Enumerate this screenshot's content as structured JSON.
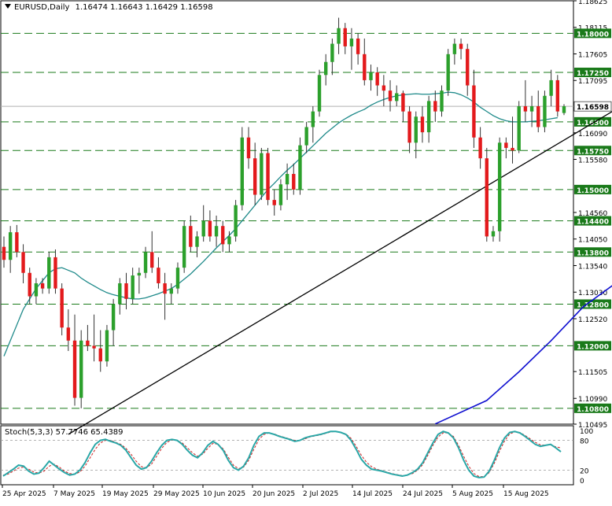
{
  "header": {
    "symbol_title": "EURUSD,Daily",
    "ohlc_text": "1.16474 1.16643 1.16429 1.16598"
  },
  "stoch_header": {
    "label": "Stoch(5,3,3) 57.7746 65.4389"
  },
  "colors": {
    "bull": "#2ca02c",
    "bear": "#e31a1c",
    "ma_fast": "#1f8a8a",
    "ma_slow": "#1010d0",
    "level_line": "#1a7a1a",
    "trend_line": "#000000",
    "stoch_main": "#2aa7a7",
    "stoch_signal": "#cc2222",
    "price_tag_green": "#1a7a1a",
    "price_tag_white": "#ffffff"
  },
  "chart_data": [
    {
      "type": "candlestick",
      "title": "EURUSD,Daily",
      "ylim": [
        1.10495,
        1.18625
      ],
      "y_axis_ticks": [
        "1.18625",
        "1.18115",
        "1.17605",
        "1.17095",
        "1.16090",
        "1.15580",
        "1.14560",
        "1.14050",
        "1.13540",
        "1.13030",
        "1.12520",
        "1.11505",
        "1.10990",
        "1.10495"
      ],
      "x_axis_labels": [
        "25 Apr 2025",
        "7 May 2025",
        "19 May 2025",
        "29 May 2025",
        "10 Jun 2025",
        "20 Jun 2025",
        "2 Jul 2025",
        "14 Jul 2025",
        "24 Jul 2025",
        "5 Aug 2025",
        "15 Aug 2025"
      ],
      "horizontal_levels": [
        {
          "price": 1.18,
          "label": "1.18000"
        },
        {
          "price": 1.1725,
          "label": "1.17250"
        },
        {
          "price": 1.163,
          "label": "1.16300"
        },
        {
          "price": 1.1575,
          "label": "1.15750"
        },
        {
          "price": 1.15,
          "label": "1.15000"
        },
        {
          "price": 1.144,
          "label": "1.14400"
        },
        {
          "price": 1.138,
          "label": "1.13800"
        },
        {
          "price": 1.128,
          "label": "1.12800"
        },
        {
          "price": 1.12,
          "label": "1.12000"
        },
        {
          "price": 1.108,
          "label": "1.10800"
        }
      ],
      "current_price": {
        "price": 1.16598,
        "label": "1.16598"
      },
      "candles": [
        [
          1.139,
          1.141,
          1.135,
          1.1365
        ],
        [
          1.1365,
          1.143,
          1.134,
          1.1418
        ],
        [
          1.1418,
          1.1432,
          1.137,
          1.138
        ],
        [
          1.138,
          1.1395,
          1.132,
          1.134
        ],
        [
          1.134,
          1.135,
          1.128,
          1.1295
        ],
        [
          1.1295,
          1.133,
          1.128,
          1.132
        ],
        [
          1.132,
          1.133,
          1.13,
          1.131
        ],
        [
          1.131,
          1.138,
          1.13,
          1.137
        ],
        [
          1.137,
          1.1385,
          1.13,
          1.131
        ],
        [
          1.131,
          1.132,
          1.122,
          1.1235
        ],
        [
          1.1235,
          1.127,
          1.119,
          1.121
        ],
        [
          1.121,
          1.126,
          1.1085,
          1.11
        ],
        [
          1.11,
          1.123,
          1.108,
          1.121
        ],
        [
          1.121,
          1.124,
          1.119,
          1.12
        ],
        [
          1.12,
          1.126,
          1.117,
          1.1195
        ],
        [
          1.1195,
          1.123,
          1.115,
          1.117
        ],
        [
          1.117,
          1.124,
          1.116,
          1.123
        ],
        [
          1.123,
          1.129,
          1.12,
          1.128
        ],
        [
          1.128,
          1.133,
          1.126,
          1.132
        ],
        [
          1.132,
          1.134,
          1.127,
          1.129
        ],
        [
          1.129,
          1.135,
          1.128,
          1.1335
        ],
        [
          1.1335,
          1.135,
          1.13,
          1.134
        ],
        [
          1.134,
          1.139,
          1.133,
          1.138
        ],
        [
          1.138,
          1.142,
          1.134,
          1.135
        ],
        [
          1.135,
          1.137,
          1.131,
          1.132
        ],
        [
          1.132,
          1.134,
          1.125,
          1.13
        ],
        [
          1.13,
          1.132,
          1.128,
          1.131
        ],
        [
          1.131,
          1.136,
          1.13,
          1.135
        ],
        [
          1.135,
          1.144,
          1.134,
          1.143
        ],
        [
          1.143,
          1.145,
          1.138,
          1.139
        ],
        [
          1.139,
          1.142,
          1.137,
          1.141
        ],
        [
          1.141,
          1.147,
          1.14,
          1.144
        ],
        [
          1.144,
          1.146,
          1.14,
          1.141
        ],
        [
          1.141,
          1.145,
          1.139,
          1.143
        ],
        [
          1.143,
          1.144,
          1.138,
          1.1395
        ],
        [
          1.1395,
          1.142,
          1.138,
          1.141
        ],
        [
          1.141,
          1.148,
          1.14,
          1.147
        ],
        [
          1.147,
          1.162,
          1.146,
          1.16
        ],
        [
          1.16,
          1.162,
          1.154,
          1.156
        ],
        [
          1.156,
          1.159,
          1.147,
          1.149
        ],
        [
          1.149,
          1.158,
          1.148,
          1.157
        ],
        [
          1.157,
          1.158,
          1.147,
          1.148
        ],
        [
          1.148,
          1.15,
          1.145,
          1.147
        ],
        [
          1.147,
          1.152,
          1.146,
          1.151
        ],
        [
          1.151,
          1.155,
          1.148,
          1.153
        ],
        [
          1.153,
          1.155,
          1.149,
          1.15
        ],
        [
          1.15,
          1.16,
          1.149,
          1.1585
        ],
        [
          1.1585,
          1.163,
          1.157,
          1.162
        ],
        [
          1.162,
          1.166,
          1.159,
          1.165
        ],
        [
          1.165,
          1.173,
          1.164,
          1.172
        ],
        [
          1.172,
          1.176,
          1.17,
          1.1745
        ],
        [
          1.1745,
          1.179,
          1.172,
          1.178
        ],
        [
          1.178,
          1.183,
          1.176,
          1.181
        ],
        [
          1.181,
          1.182,
          1.176,
          1.1775
        ],
        [
          1.1775,
          1.181,
          1.173,
          1.179
        ],
        [
          1.179,
          1.18,
          1.174,
          1.176
        ],
        [
          1.176,
          1.179,
          1.17,
          1.171
        ],
        [
          1.171,
          1.174,
          1.169,
          1.1725
        ],
        [
          1.1725,
          1.1735,
          1.168,
          1.17
        ],
        [
          1.17,
          1.172,
          1.166,
          1.169
        ],
        [
          1.169,
          1.171,
          1.165,
          1.167
        ],
        [
          1.167,
          1.17,
          1.166,
          1.1685
        ],
        [
          1.1685,
          1.169,
          1.163,
          1.165
        ],
        [
          1.165,
          1.166,
          1.157,
          1.159
        ],
        [
          1.159,
          1.165,
          1.156,
          1.164
        ],
        [
          1.164,
          1.166,
          1.159,
          1.161
        ],
        [
          1.161,
          1.168,
          1.159,
          1.167
        ],
        [
          1.167,
          1.169,
          1.163,
          1.165
        ],
        [
          1.165,
          1.17,
          1.164,
          1.169
        ],
        [
          1.169,
          1.177,
          1.168,
          1.176
        ],
        [
          1.176,
          1.179,
          1.174,
          1.178
        ],
        [
          1.178,
          1.179,
          1.175,
          1.177
        ],
        [
          1.177,
          1.178,
          1.168,
          1.17
        ],
        [
          1.17,
          1.173,
          1.158,
          1.16
        ],
        [
          1.16,
          1.162,
          1.154,
          1.156
        ],
        [
          1.156,
          1.158,
          1.14,
          1.141
        ],
        [
          1.141,
          1.143,
          1.14,
          1.142
        ],
        [
          1.142,
          1.16,
          1.14,
          1.159
        ],
        [
          1.159,
          1.16,
          1.156,
          1.158
        ],
        [
          1.158,
          1.164,
          1.155,
          1.1575
        ],
        [
          1.1575,
          1.167,
          1.157,
          1.166
        ],
        [
          1.166,
          1.171,
          1.163,
          1.165
        ],
        [
          1.165,
          1.168,
          1.162,
          1.166
        ],
        [
          1.166,
          1.169,
          1.161,
          1.162
        ],
        [
          1.162,
          1.169,
          1.161,
          1.168
        ],
        [
          1.168,
          1.173,
          1.166,
          1.171
        ],
        [
          1.171,
          1.172,
          1.164,
          1.165
        ],
        [
          1.1647,
          1.1664,
          1.1643,
          1.166
        ]
      ],
      "ma_fast": [
        1.118,
        1.121,
        1.124,
        1.127,
        1.129,
        1.131,
        1.1325,
        1.134,
        1.1348,
        1.135,
        1.1345,
        1.134,
        1.133,
        1.1322,
        1.1315,
        1.1308,
        1.1302,
        1.1298,
        1.1295,
        1.1292,
        1.129,
        1.129,
        1.1292,
        1.1296,
        1.13,
        1.1305,
        1.131,
        1.1318,
        1.1328,
        1.1338,
        1.135,
        1.1362,
        1.1375,
        1.1388,
        1.14,
        1.1412,
        1.1425,
        1.144,
        1.1455,
        1.147,
        1.1485,
        1.15,
        1.1512,
        1.1525,
        1.1537,
        1.1548,
        1.156,
        1.1572,
        1.1584,
        1.1596,
        1.1608,
        1.1618,
        1.1628,
        1.1636,
        1.1643,
        1.1649,
        1.1654,
        1.1662,
        1.1668,
        1.1673,
        1.1677,
        1.168,
        1.1682,
        1.1683,
        1.1684,
        1.1683,
        1.1683,
        1.1684,
        1.1685,
        1.1687,
        1.1686,
        1.1682,
        1.1676,
        1.1668,
        1.1658,
        1.165,
        1.1642,
        1.1636,
        1.1632,
        1.163,
        1.163,
        1.163,
        1.1631,
        1.1632,
        1.1634,
        1.1636,
        1.1638
      ],
      "ma_slow": [
        [
          67,
          1.105
        ],
        [
          75,
          1.1095
        ],
        [
          80,
          1.115
        ],
        [
          85,
          1.121
        ],
        [
          90,
          1.1275
        ],
        [
          95,
          1.132
        ],
        [
          100,
          1.1345
        ],
        [
          104,
          1.1362
        ],
        [
          108,
          1.1385
        ],
        [
          111,
          1.1405
        ],
        [
          113,
          1.142
        ],
        [
          116,
          1.144
        ]
      ],
      "trend_line": {
        "from": {
          "x": 10,
          "y": 1.103
        },
        "to": {
          "x": 114,
          "y": 1.1793
        }
      }
    },
    {
      "type": "line",
      "title": "Stoch(5,3,3)",
      "ylim": [
        0,
        100
      ],
      "y_axis_ticks": [
        "100",
        "80",
        "20",
        "0"
      ],
      "levels": [
        80,
        20
      ],
      "series": [
        {
          "name": "Main",
          "values": [
            8,
            15,
            22,
            30,
            28,
            18,
            12,
            14,
            25,
            38,
            30,
            22,
            15,
            10,
            12,
            20,
            35,
            55,
            72,
            80,
            82,
            78,
            75,
            70,
            60,
            45,
            30,
            22,
            25,
            38,
            55,
            70,
            80,
            82,
            80,
            72,
            60,
            50,
            45,
            55,
            70,
            78,
            72,
            60,
            40,
            25,
            20,
            28,
            45,
            70,
            88,
            95,
            95,
            92,
            88,
            85,
            82,
            78,
            80,
            85,
            88,
            90,
            92,
            95,
            98,
            98,
            96,
            92,
            80,
            62,
            42,
            30,
            22,
            20,
            18,
            15,
            12,
            10,
            8,
            10,
            15,
            22,
            35,
            55,
            75,
            92,
            98,
            95,
            85,
            65,
            40,
            20,
            8,
            5,
            6,
            18,
            40,
            65,
            85,
            96,
            98,
            95,
            88,
            80,
            72,
            68,
            70,
            72,
            65,
            57
          ]
        },
        {
          "name": "Signal",
          "values": [
            10,
            12,
            18,
            24,
            26,
            22,
            16,
            14,
            18,
            28,
            32,
            26,
            18,
            13,
            12,
            16,
            28,
            45,
            62,
            75,
            80,
            80,
            76,
            72,
            64,
            52,
            38,
            27,
            25,
            32,
            48,
            64,
            76,
            81,
            80,
            75,
            65,
            55,
            48,
            52,
            64,
            74,
            72,
            63,
            46,
            30,
            23,
            26,
            40,
            62,
            82,
            92,
            95,
            93,
            89,
            86,
            83,
            80,
            80,
            83,
            87,
            89,
            91,
            94,
            97,
            98,
            96,
            93,
            84,
            68,
            50,
            36,
            27,
            22,
            19,
            16,
            13,
            11,
            9,
            10,
            13,
            20,
            31,
            50,
            70,
            87,
            95,
            95,
            88,
            70,
            48,
            28,
            13,
            7,
            7,
            15,
            34,
            58,
            79,
            93,
            97,
            96,
            90,
            83,
            76,
            71,
            70,
            71,
            67,
            65
          ]
        }
      ]
    }
  ]
}
